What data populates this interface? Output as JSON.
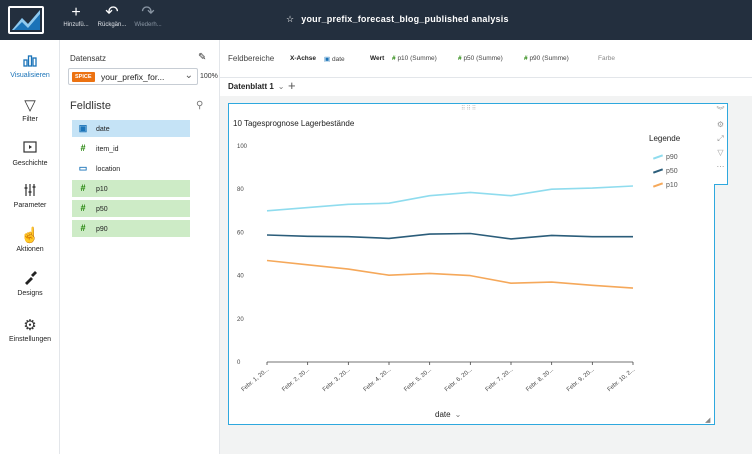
{
  "toolbar": {
    "add_label": "Hinzufü...",
    "undo_label": "Rückgän...",
    "redo_label": "Wiederh...",
    "analysis_title": "your_prefix_forecast_blog_published analysis"
  },
  "leftnav": [
    {
      "label": "Visualisieren",
      "icon": "visualize-icon"
    },
    {
      "label": "Filter",
      "icon": "filter-icon"
    },
    {
      "label": "Geschichte",
      "icon": "story-icon"
    },
    {
      "label": "Parameter",
      "icon": "parameter-icon"
    },
    {
      "label": "Aktionen",
      "icon": "actions-icon"
    },
    {
      "label": "Designs",
      "icon": "themes-icon"
    },
    {
      "label": "Einstellungen",
      "icon": "settings-icon"
    }
  ],
  "dataset": {
    "label": "Datensatz",
    "badge": "SPICE",
    "name": "your_prefix_for...",
    "percent": "100%"
  },
  "fieldlist": {
    "title": "Feldliste",
    "fields": [
      {
        "name": "date",
        "type": "date"
      },
      {
        "name": "item_id",
        "type": "num"
      },
      {
        "name": "location",
        "type": "dim"
      },
      {
        "name": "p10",
        "type": "num"
      },
      {
        "name": "p50",
        "type": "num"
      },
      {
        "name": "p90",
        "type": "num"
      }
    ]
  },
  "wells": {
    "title": "Feldbereiche",
    "x_label": "X-Achse",
    "x_value": "date",
    "value_label": "Wert",
    "values": [
      "p10 (Summe)",
      "p50 (Summe)",
      "p90 (Summe)"
    ],
    "color_label": "Farbe"
  },
  "sheet": {
    "tab": "Datenblatt 1",
    "add": "+"
  },
  "colors": {
    "p90": "#8fdcee",
    "p50": "#2b5d7a",
    "p10": "#f5a85a",
    "accent": "#2ea8de"
  },
  "chart_data": {
    "type": "line",
    "title": "10 Tagesprognose Lagerbestände",
    "xlabel": "date",
    "ylabel": "",
    "ylim": [
      0,
      100
    ],
    "yticks": [
      0,
      20,
      40,
      60,
      80,
      100
    ],
    "categories": [
      "Febr. 1, 20...",
      "Febr. 2, 20...",
      "Febr. 3, 20...",
      "Febr. 4, 20...",
      "Febr. 5, 20...",
      "Febr. 6, 20...",
      "Febr. 7, 20...",
      "Febr. 8, 20...",
      "Febr. 9, 20...",
      "Febr. 10, 2..."
    ],
    "legend_title": "Legende",
    "legend_position": "right",
    "series": [
      {
        "name": "p90",
        "values": [
          70,
          71.5,
          73,
          73.5,
          77,
          78.5,
          77,
          80,
          80.5,
          81.5
        ]
      },
      {
        "name": "p50",
        "values": [
          58.8,
          58.2,
          58,
          57.2,
          59.2,
          59.5,
          57,
          58.6,
          58,
          58
        ]
      },
      {
        "name": "p10",
        "values": [
          47,
          45,
          43,
          40.2,
          41,
          40,
          36.5,
          37,
          35.5,
          34.2
        ]
      }
    ]
  }
}
